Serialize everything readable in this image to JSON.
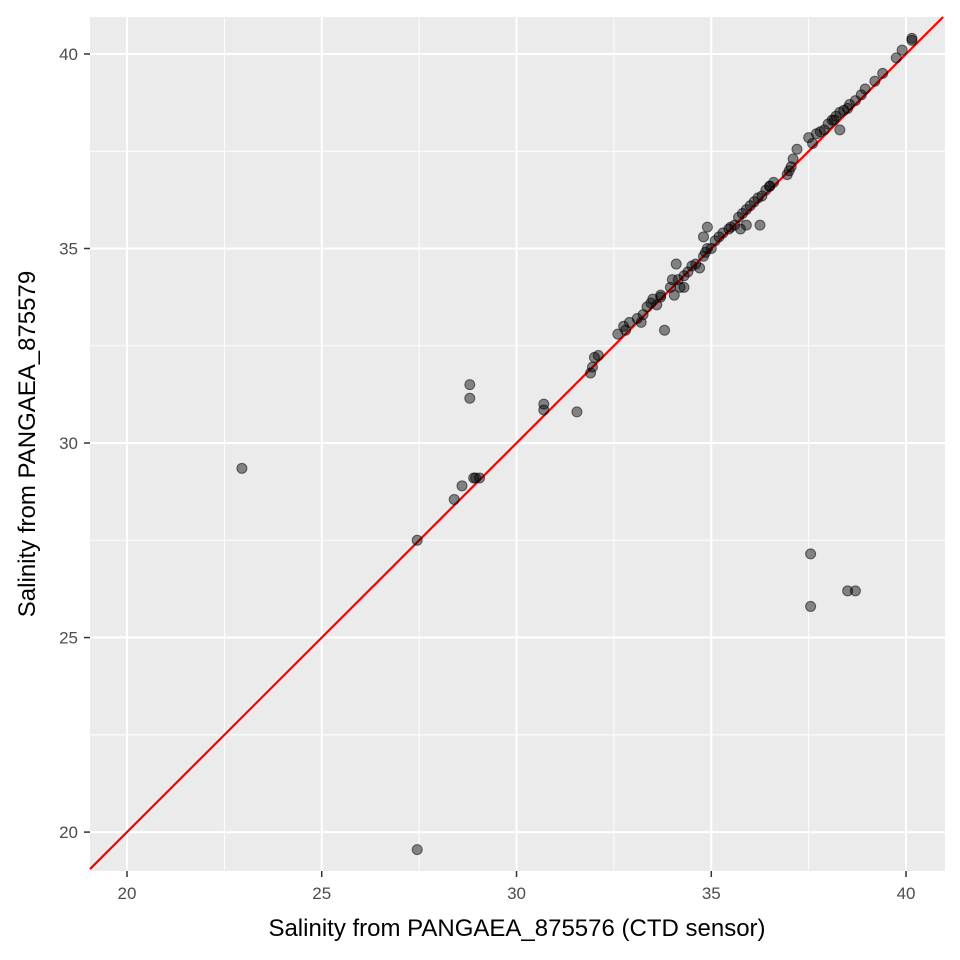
{
  "chart_data": {
    "type": "scatter",
    "xlabel": "Salinity from PANGAEA_875576 (CTD sensor)",
    "ylabel": "Salinity from PANGAEA_875579",
    "xlim": [
      19.05,
      41.0
    ],
    "ylim": [
      19.0,
      40.95
    ],
    "x_ticks": [
      20,
      25,
      30,
      35,
      40
    ],
    "y_ticks": [
      20,
      25,
      30,
      35,
      40
    ],
    "x_tick_labels": [
      "20",
      "25",
      "30",
      "35",
      "40"
    ],
    "y_tick_labels": [
      "20",
      "25",
      "30",
      "35",
      "40"
    ],
    "grid": true,
    "background": "#ebebeb",
    "point_color": "#000000",
    "point_alpha": 0.45,
    "reference_line": {
      "type": "identity",
      "slope": 1,
      "intercept": 0,
      "color": "#ff0000"
    },
    "points": {
      "x": [
        22.95,
        27.45,
        27.45,
        28.4,
        28.6,
        28.8,
        28.8,
        28.9,
        28.95,
        29.05,
        30.7,
        30.7,
        31.55,
        31.9,
        31.95,
        32.0,
        32.1,
        32.6,
        32.75,
        32.9,
        33.1,
        33.2,
        33.25,
        33.35,
        33.45,
        33.5,
        33.6,
        33.7,
        33.8,
        33.95,
        34.05,
        34.1,
        34.15,
        34.2,
        34.3,
        34.4,
        34.5,
        34.6,
        34.7,
        34.8,
        34.85,
        34.9,
        35.0,
        35.1,
        35.2,
        35.3,
        35.45,
        35.6,
        35.7,
        35.75,
        35.8,
        35.9,
        36.0,
        36.1,
        36.2,
        36.3,
        36.4,
        36.5,
        36.6,
        36.25,
        36.95,
        37.05,
        37.1,
        37.2,
        37.55,
        37.55,
        37.6,
        37.7,
        37.8,
        37.9,
        38.0,
        38.1,
        38.15,
        38.2,
        38.3,
        38.4,
        38.5,
        38.55,
        38.7,
        38.85,
        38.95,
        39.2,
        39.4,
        39.75,
        39.9,
        40.15,
        40.15,
        38.5,
        38.7,
        37.0,
        35.9,
        34.8,
        34.3,
        33.7,
        32.8,
        34.0,
        34.9,
        36.5,
        37.5,
        38.3,
        35.5
      ],
      "y": [
        29.35,
        27.5,
        19.55,
        28.55,
        28.9,
        31.5,
        31.15,
        29.1,
        29.1,
        29.1,
        31.0,
        30.85,
        30.8,
        31.8,
        31.95,
        32.2,
        32.25,
        32.8,
        33.0,
        33.1,
        33.2,
        33.1,
        33.3,
        33.5,
        33.6,
        33.7,
        33.55,
        33.75,
        32.9,
        34.0,
        33.8,
        34.6,
        34.2,
        34.0,
        34.3,
        34.4,
        34.55,
        34.6,
        34.5,
        34.8,
        34.9,
        35.55,
        35.0,
        35.2,
        35.3,
        35.4,
        35.5,
        35.6,
        35.8,
        35.5,
        35.9,
        36.0,
        36.1,
        36.2,
        36.3,
        36.35,
        36.5,
        36.6,
        36.7,
        35.6,
        36.9,
        37.1,
        37.3,
        37.55,
        25.8,
        27.15,
        37.7,
        37.95,
        38.0,
        38.05,
        38.2,
        38.3,
        38.3,
        38.4,
        38.5,
        38.55,
        38.6,
        38.7,
        38.8,
        38.95,
        39.1,
        39.3,
        39.5,
        39.9,
        40.1,
        40.35,
        40.4,
        26.2,
        26.2,
        37.0,
        35.6,
        35.3,
        34.0,
        33.8,
        32.9,
        34.2,
        35.0,
        36.6,
        37.85,
        38.05,
        35.55
      ]
    }
  }
}
